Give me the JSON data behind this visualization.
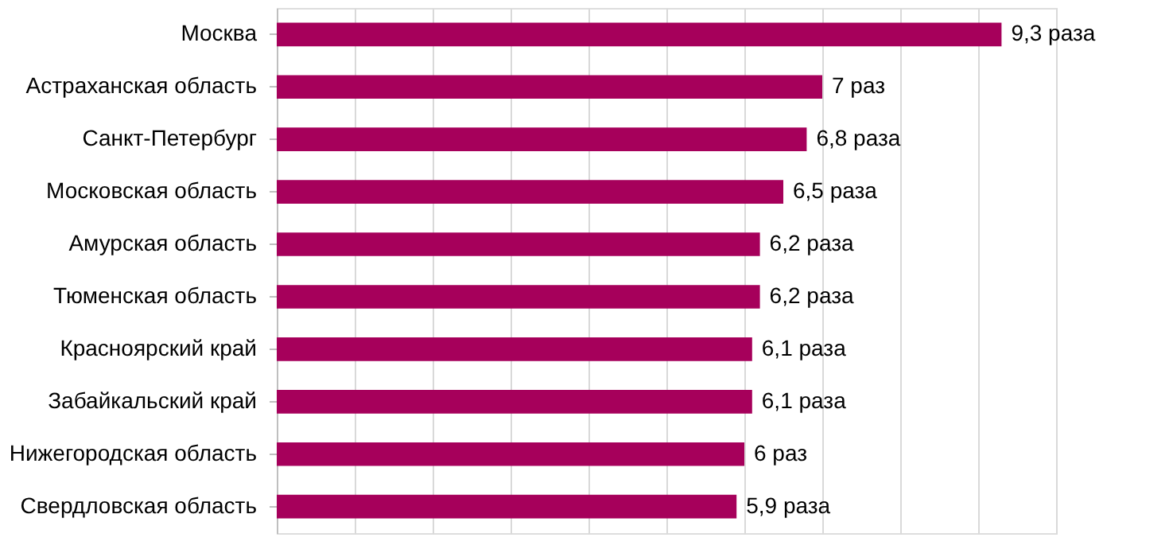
{
  "chart_data": {
    "type": "bar",
    "orientation": "horizontal",
    "categories": [
      "Москва",
      "Астраханская область",
      "Санкт-Петербург",
      "Московская область",
      "Амурская область",
      "Тюменская область",
      "Красноярский край",
      "Забайкальский край",
      "Нижегородская область",
      "Свердловская область"
    ],
    "values": [
      9.3,
      7,
      6.8,
      6.5,
      6.2,
      6.2,
      6.1,
      6.1,
      6,
      5.9
    ],
    "value_labels": [
      "9,3 раза",
      "7 раз",
      "6,8 раза",
      "6,5 раза",
      "6,2 раза",
      "6,2 раза",
      "6,1 раза",
      "6,1 раза",
      "6 раз",
      "5,9 раза"
    ],
    "color": "#a6005b",
    "xlim": [
      0,
      10
    ],
    "xticks": [
      {
        "value": 0,
        "label": null
      },
      {
        "value": 1,
        "label": null
      },
      {
        "value": 2,
        "label": null
      },
      {
        "value": 3,
        "label": null
      },
      {
        "value": 4,
        "label": null
      },
      {
        "value": 5,
        "label": null
      },
      {
        "value": 6,
        "label": null
      },
      {
        "value": 7,
        "label": null
      },
      {
        "value": 8,
        "label": null
      },
      {
        "value": 9,
        "label": null
      },
      {
        "value": 10,
        "label": null
      }
    ],
    "grid": "x",
    "tick_labels": "y"
  }
}
